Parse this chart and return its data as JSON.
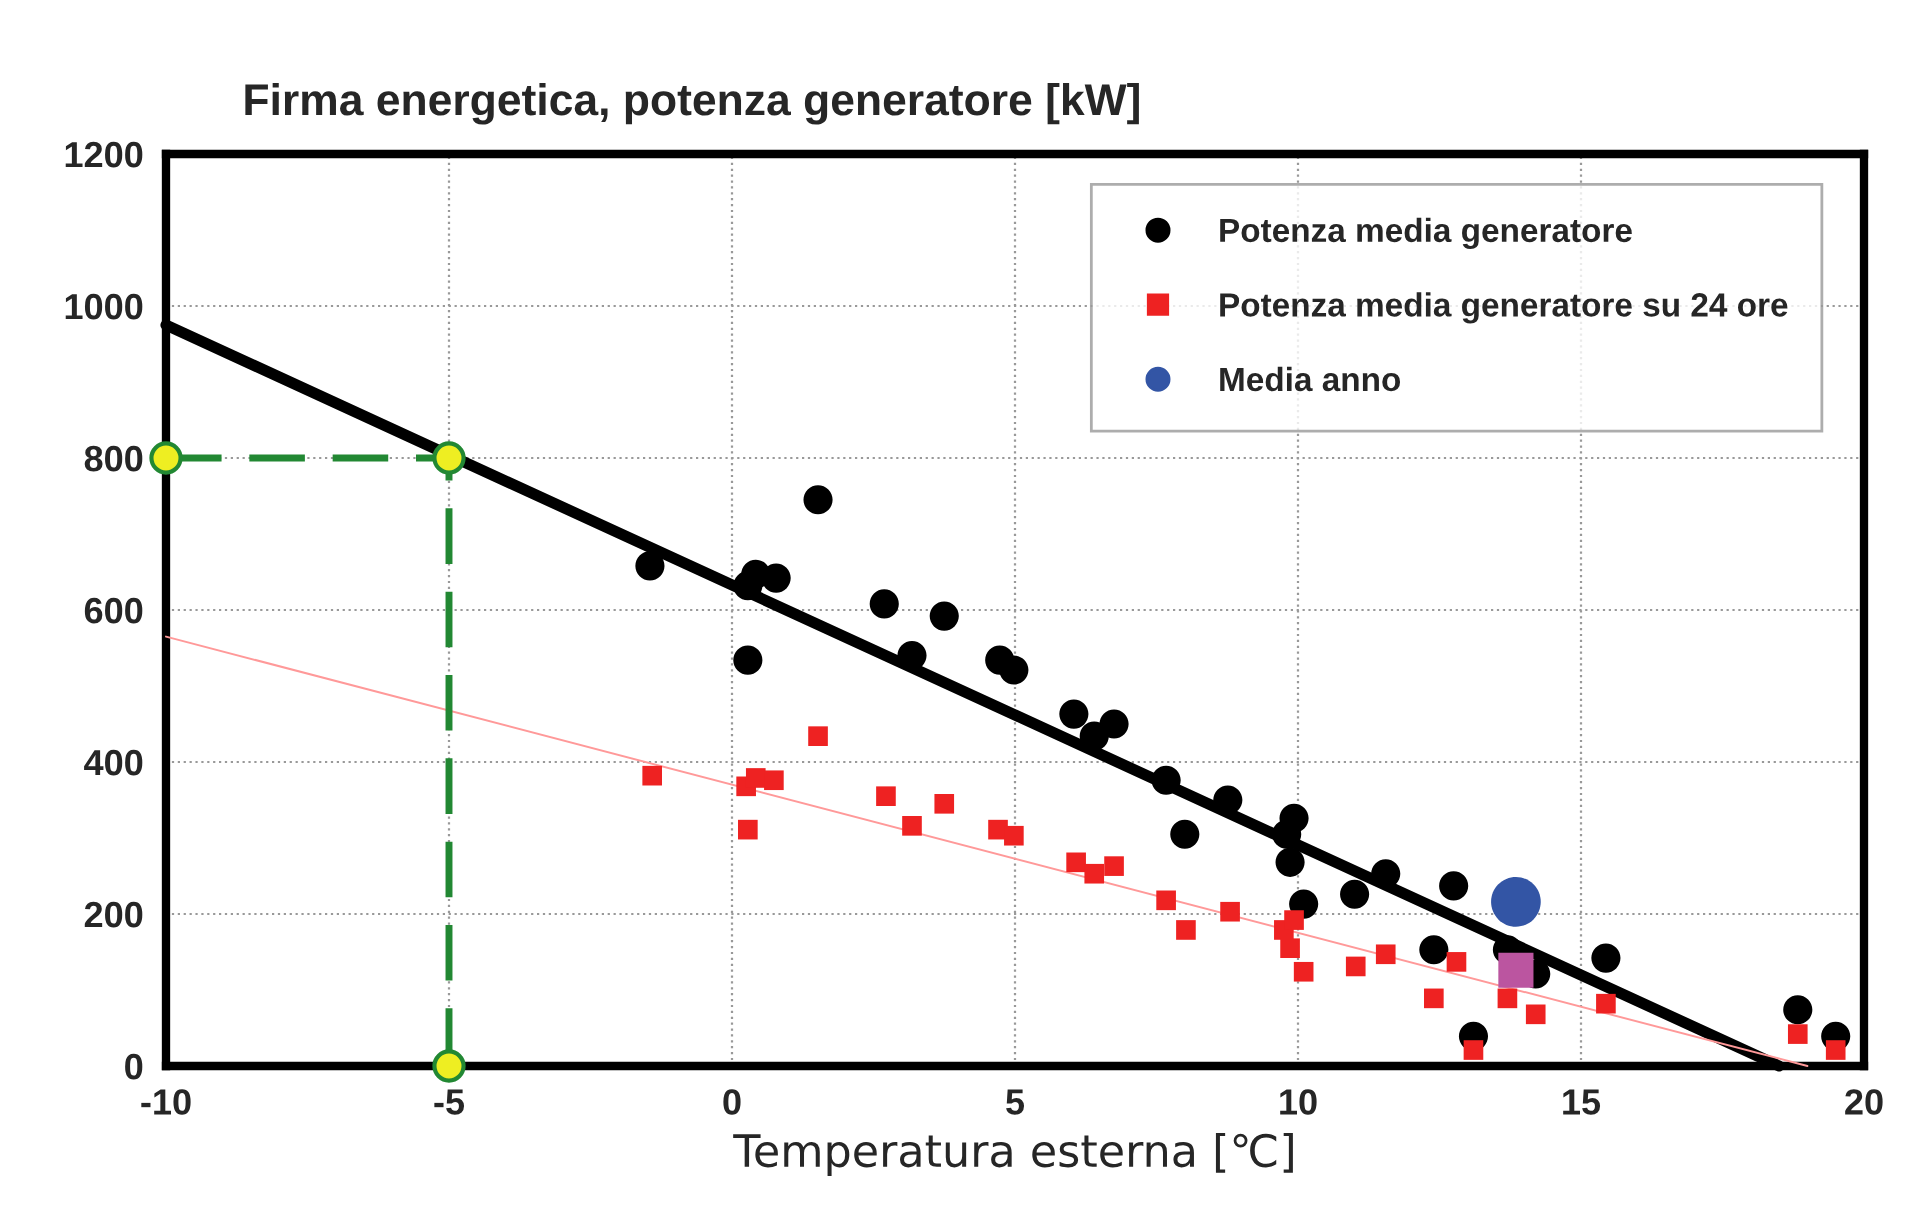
{
  "chart_data": {
    "type": "scatter",
    "title": "Firma energetica, potenza generatore [kW]",
    "xlabel": "Temperatura esterna [℃]",
    "xlim": [
      -10,
      20
    ],
    "xticks": [
      -10,
      -5,
      0,
      5,
      10,
      15,
      20
    ],
    "ylim": [
      0,
      1200
    ],
    "yticks": [
      0,
      200,
      400,
      600,
      800,
      1000,
      1200
    ],
    "grid": true,
    "legend": "top right",
    "series": [
      {
        "name": "Potenza media generatore",
        "marker": "circle",
        "color": "#000000",
        "x": [
          -1.45,
          0.28,
          0.42,
          0.78,
          0.28,
          1.52,
          2.69,
          3.18,
          3.75,
          4.73,
          4.98,
          6.04,
          6.4,
          6.75,
          7.67,
          8.0,
          8.76,
          9.93,
          9.8,
          9.86,
          10.1,
          11.0,
          11.55,
          12.75,
          12.4,
          13.1,
          13.7,
          14.2,
          15.44,
          18.83,
          19.5
        ],
        "values": [
          658,
          632,
          647,
          642,
          534,
          745,
          608,
          540,
          592,
          534,
          521,
          463,
          434,
          450,
          376,
          305,
          350,
          326,
          305,
          268,
          213,
          226,
          253,
          237,
          153,
          39,
          153,
          121,
          142,
          74,
          39
        ]
      },
      {
        "name": "Potenza media generatore su 24 ore",
        "marker": "square",
        "color": "#ee2222",
        "x": [
          -1.41,
          0.25,
          0.42,
          0.74,
          0.28,
          1.52,
          2.72,
          3.18,
          3.75,
          4.7,
          4.98,
          6.08,
          6.4,
          6.75,
          7.67,
          8.02,
          8.8,
          9.75,
          9.93,
          9.86,
          10.1,
          11.02,
          11.55,
          12.8,
          12.4,
          13.1,
          13.7,
          14.2,
          15.44,
          18.83,
          19.5
        ],
        "values": [
          382,
          368,
          379,
          376,
          311,
          434,
          355,
          316,
          345,
          311,
          303,
          268,
          253,
          263,
          218,
          179,
          203,
          179,
          192,
          155,
          124,
          131,
          147,
          137,
          89,
          21,
          89,
          68,
          82,
          42,
          21
        ]
      },
      {
        "name": "Media anno",
        "marker": "circle",
        "color": "#3355a5",
        "x": [
          13.85
        ],
        "values": [
          216
        ]
      },
      {
        "marker": "square",
        "color": "#bb55a0",
        "x": [
          13.85
        ],
        "values": [
          126
        ]
      },
      {
        "type": "line",
        "marker": "none",
        "line_style": "solid",
        "color": "#000000",
        "x": [
          -10,
          18.5
        ],
        "values": [
          975,
          0
        ]
      },
      {
        "type": "line",
        "marker": "none",
        "line_style": "solid",
        "color": "#ff9999",
        "x": [
          -10,
          19
        ],
        "values": [
          565,
          0
        ]
      },
      {
        "type": "line",
        "marker": "none",
        "line_style": "dashed",
        "color": "#228833",
        "x": [
          -10,
          -5,
          -5
        ],
        "values": [
          800,
          800,
          0
        ]
      },
      {
        "marker": "circle",
        "color": "#eeee22",
        "x": [
          -10,
          -5,
          -5
        ],
        "values": [
          800,
          800,
          0
        ]
      }
    ]
  }
}
